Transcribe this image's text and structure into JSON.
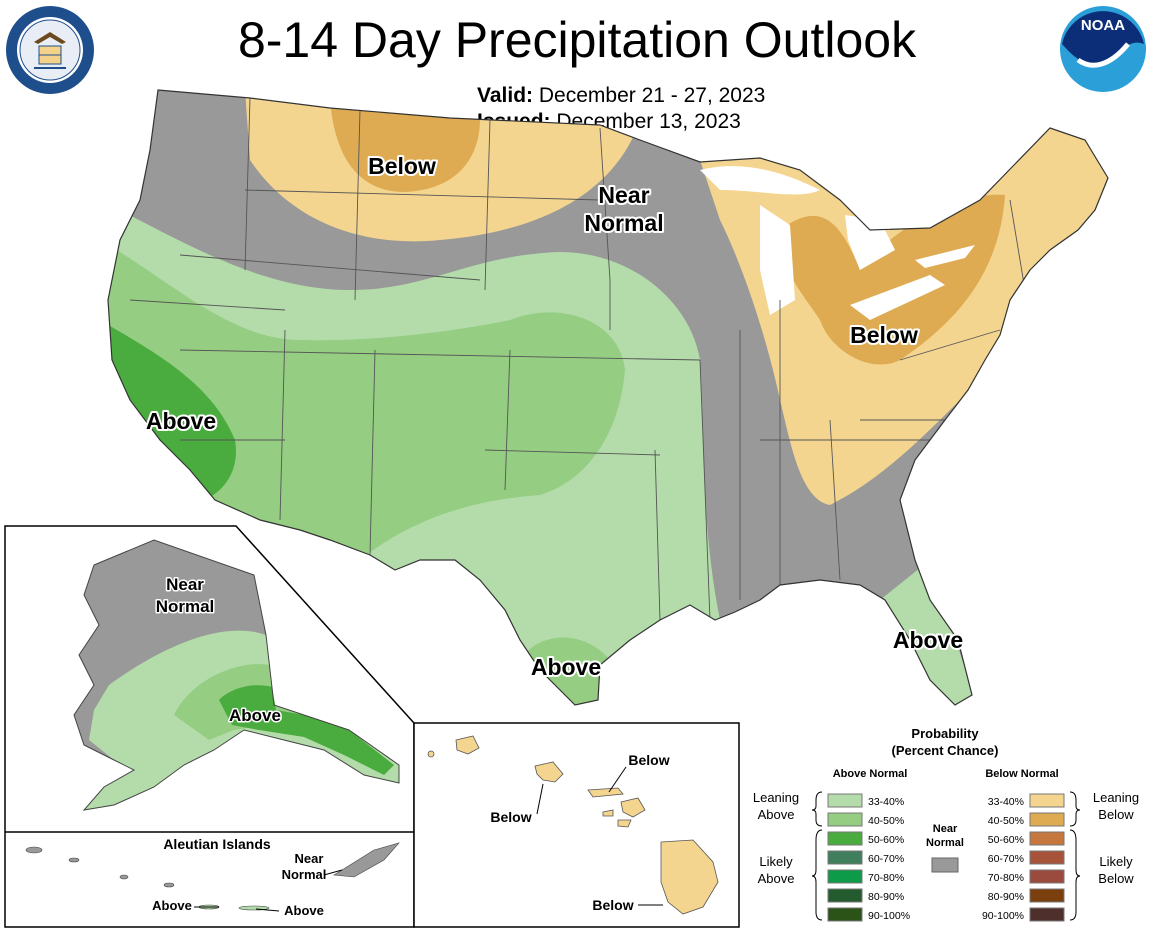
{
  "title": "8-14 Day Precipitation Outlook",
  "valid_label": "Valid:",
  "valid_value": "December 21 - 27, 2023",
  "issued_label": "Issued:",
  "issued_value": "December 13, 2023",
  "logos": {
    "left": "department-of-commerce-seal",
    "right_text": "NOAA"
  },
  "conus_labels": {
    "below_north": "Below",
    "near_normal_1": "Near",
    "near_normal_2": "Normal",
    "below_east": "Below",
    "above_west": "Above",
    "above_texas": "Above",
    "above_florida": "Above"
  },
  "alaska": {
    "near_1": "Near",
    "near_2": "Normal",
    "above": "Above"
  },
  "aleutians": {
    "title": "Aleutian Islands",
    "near_1": "Near",
    "near_2": "Normal",
    "above_1": "Above",
    "above_2": "Above"
  },
  "hawaii": {
    "below_1": "Below",
    "below_2": "Below",
    "below_3": "Below"
  },
  "legend": {
    "title_1": "Probability",
    "title_2": "(Percent Chance)",
    "above_header": "Above Normal",
    "below_header": "Below Normal",
    "near_1": "Near",
    "near_2": "Normal",
    "leaning_above_1": "Leaning",
    "leaning_above_2": "Above",
    "likely_above_1": "Likely",
    "likely_above_2": "Above",
    "leaning_below_1": "Leaning",
    "leaning_below_2": "Below",
    "likely_below_1": "Likely",
    "likely_below_2": "Below",
    "above_ranges": [
      "33-40%",
      "40-50%",
      "50-60%",
      "60-70%",
      "70-80%",
      "80-90%",
      "90-100%"
    ],
    "below_ranges": [
      "33-40%",
      "40-50%",
      "50-60%",
      "60-70%",
      "70-80%",
      "80-90%",
      "90-100%"
    ],
    "above_colors": [
      "#b3dcaa",
      "#95cd83",
      "#4aab3e",
      "#3f7f5e",
      "#0d9a49",
      "#245b2e",
      "#2b5217"
    ],
    "below_colors": [
      "#f4d590",
      "#dfab52",
      "#c6773e",
      "#a6533a",
      "#9b4b3d",
      "#7b3f0d",
      "#4f2f2b"
    ],
    "near_color": "#999999"
  },
  "colors": {
    "near": "#999999",
    "above_33": "#b3dcaa",
    "above_40": "#95cd83",
    "above_50": "#4aab3e",
    "below_33": "#f4d590",
    "below_40": "#dfab52",
    "water": "#ffffff"
  }
}
